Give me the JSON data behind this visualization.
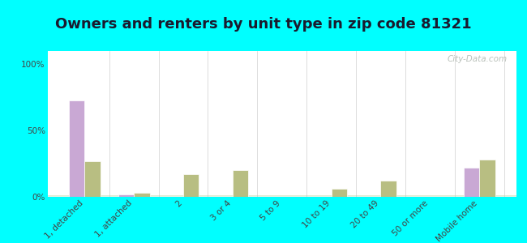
{
  "title": "Owners and renters by unit type in zip code 81321",
  "categories": [
    "1, detached",
    "1, attached",
    "2",
    "3 or 4",
    "5 to 9",
    "10 to 19",
    "20 to 49",
    "50 or more",
    "Mobile home"
  ],
  "owner_values": [
    73,
    2,
    0,
    0,
    0,
    0,
    0,
    0,
    22
  ],
  "renter_values": [
    27,
    3,
    17,
    20,
    0,
    6,
    12,
    0,
    28
  ],
  "owner_color": "#c9a8d4",
  "renter_color": "#b8be82",
  "background_color": "#00ffff",
  "ylabel_ticks": [
    "0%",
    "50%",
    "100%"
  ],
  "ytick_values": [
    0,
    50,
    100
  ],
  "ylim": [
    0,
    110
  ],
  "bar_width": 0.32,
  "title_fontsize": 13,
  "tick_fontsize": 7.5,
  "legend_fontsize": 9,
  "watermark": "City-Data.com",
  "title_color": "#1a1a2e",
  "tick_color": "#444444"
}
